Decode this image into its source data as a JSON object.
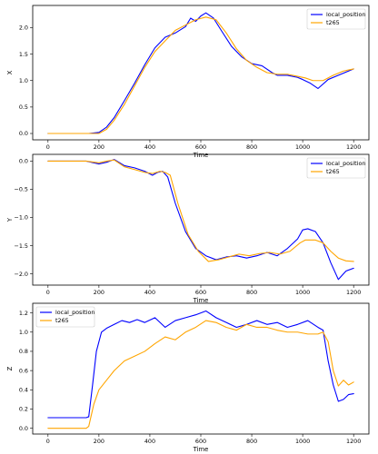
{
  "colors": {
    "local_position": "#0000ff",
    "t265": "#ffa500"
  },
  "chart_data": [
    {
      "type": "line",
      "xlabel": "Time",
      "ylabel": "X",
      "xlim": [
        -60,
        1260
      ],
      "ylim": [
        -0.12,
        2.42
      ],
      "xticks": [
        0,
        200,
        400,
        600,
        800,
        1000,
        1200
      ],
      "yticks": [
        0.0,
        0.5,
        1.0,
        1.5,
        2.0
      ],
      "ytick_labels": [
        "0.0",
        "0.5",
        "1.0",
        "1.5",
        "2.0"
      ],
      "legend": "top-right",
      "series": [
        {
          "name": "local_position",
          "color": "#0000ff",
          "x": [
            0,
            100,
            160,
            200,
            230,
            260,
            300,
            340,
            380,
            420,
            460,
            500,
            540,
            560,
            580,
            600,
            620,
            650,
            680,
            720,
            760,
            800,
            840,
            880,
            900,
            940,
            980,
            1000,
            1030,
            1060,
            1100,
            1140,
            1180,
            1200
          ],
          "y": [
            0.0,
            0.0,
            0.0,
            0.02,
            0.12,
            0.3,
            0.62,
            0.95,
            1.3,
            1.62,
            1.82,
            1.9,
            2.02,
            2.18,
            2.12,
            2.22,
            2.28,
            2.18,
            1.95,
            1.65,
            1.45,
            1.32,
            1.28,
            1.15,
            1.1,
            1.1,
            1.06,
            1.02,
            0.95,
            0.85,
            1.02,
            1.1,
            1.18,
            1.22
          ]
        },
        {
          "name": "t265",
          "color": "#ffa500",
          "x": [
            0,
            100,
            160,
            200,
            230,
            260,
            300,
            340,
            380,
            420,
            460,
            500,
            540,
            580,
            620,
            660,
            700,
            740,
            780,
            820,
            860,
            900,
            940,
            980,
            1010,
            1040,
            1080,
            1120,
            1160,
            1200
          ],
          "y": [
            0.0,
            0.0,
            0.0,
            0.0,
            0.08,
            0.25,
            0.55,
            0.9,
            1.25,
            1.55,
            1.75,
            1.95,
            2.05,
            2.15,
            2.2,
            2.15,
            1.9,
            1.6,
            1.38,
            1.25,
            1.15,
            1.12,
            1.12,
            1.08,
            1.05,
            1.0,
            1.0,
            1.1,
            1.18,
            1.22
          ]
        }
      ]
    },
    {
      "type": "line",
      "xlabel": "Time",
      "ylabel": "Y",
      "xlim": [
        -60,
        1260
      ],
      "ylim": [
        -2.2,
        0.12
      ],
      "xticks": [
        0,
        200,
        400,
        600,
        800,
        1000,
        1200
      ],
      "yticks": [
        0.0,
        -0.5,
        -1.0,
        -1.5,
        -2.0
      ],
      "ytick_labels": [
        "0.0",
        "−0.5",
        "−1.0",
        "−1.5",
        "−2.0"
      ],
      "legend": "top-right",
      "series": [
        {
          "name": "local_position",
          "color": "#0000ff",
          "x": [
            0,
            100,
            150,
            200,
            230,
            260,
            300,
            340,
            380,
            410,
            430,
            450,
            470,
            500,
            540,
            580,
            620,
            660,
            700,
            740,
            780,
            820,
            860,
            900,
            940,
            980,
            1000,
            1020,
            1050,
            1080,
            1110,
            1140,
            1170,
            1200
          ],
          "y": [
            0.0,
            0.0,
            0.0,
            -0.05,
            -0.02,
            0.03,
            -0.08,
            -0.12,
            -0.18,
            -0.25,
            -0.2,
            -0.18,
            -0.28,
            -0.75,
            -1.25,
            -1.55,
            -1.68,
            -1.75,
            -1.7,
            -1.68,
            -1.72,
            -1.68,
            -1.62,
            -1.68,
            -1.55,
            -1.38,
            -1.22,
            -1.2,
            -1.25,
            -1.45,
            -1.8,
            -2.1,
            -1.95,
            -1.9
          ]
        },
        {
          "name": "t265",
          "color": "#ffa500",
          "x": [
            0,
            100,
            150,
            200,
            230,
            260,
            300,
            340,
            380,
            410,
            440,
            460,
            480,
            510,
            550,
            590,
            630,
            670,
            710,
            750,
            790,
            830,
            870,
            910,
            950,
            990,
            1010,
            1050,
            1080,
            1110,
            1140,
            1170,
            1200
          ],
          "y": [
            0.0,
            0.0,
            0.0,
            -0.03,
            0.0,
            0.02,
            -0.1,
            -0.15,
            -0.2,
            -0.22,
            -0.18,
            -0.2,
            -0.25,
            -0.75,
            -1.3,
            -1.6,
            -1.78,
            -1.75,
            -1.7,
            -1.65,
            -1.68,
            -1.64,
            -1.62,
            -1.65,
            -1.6,
            -1.45,
            -1.4,
            -1.4,
            -1.45,
            -1.6,
            -1.72,
            -1.77,
            -1.78
          ]
        }
      ]
    },
    {
      "type": "line",
      "xlabel": "Time",
      "ylabel": "Z",
      "xlim": [
        -60,
        1260
      ],
      "ylim": [
        -0.06,
        1.3
      ],
      "xticks": [
        0,
        200,
        400,
        600,
        800,
        1000,
        1200
      ],
      "yticks": [
        0.0,
        0.2,
        0.4,
        0.6,
        0.8,
        1.0,
        1.2
      ],
      "ytick_labels": [
        "0.0",
        "0.2",
        "0.4",
        "0.6",
        "0.8",
        "1.0",
        "1.2"
      ],
      "legend": "top-left",
      "series": [
        {
          "name": "local_position",
          "color": "#0000ff",
          "x": [
            0,
            100,
            150,
            160,
            175,
            190,
            210,
            230,
            260,
            290,
            320,
            350,
            380,
            420,
            460,
            500,
            540,
            580,
            620,
            660,
            700,
            740,
            780,
            820,
            860,
            900,
            940,
            980,
            1020,
            1060,
            1080,
            1100,
            1120,
            1140,
            1160,
            1180,
            1200
          ],
          "y": [
            0.11,
            0.11,
            0.11,
            0.12,
            0.45,
            0.8,
            1.0,
            1.04,
            1.08,
            1.12,
            1.1,
            1.13,
            1.1,
            1.15,
            1.05,
            1.12,
            1.15,
            1.18,
            1.22,
            1.15,
            1.1,
            1.05,
            1.08,
            1.12,
            1.08,
            1.1,
            1.05,
            1.08,
            1.12,
            1.05,
            1.02,
            0.7,
            0.45,
            0.28,
            0.3,
            0.35,
            0.36
          ]
        },
        {
          "name": "t265",
          "color": "#ffa500",
          "x": [
            0,
            100,
            150,
            160,
            180,
            200,
            230,
            260,
            300,
            340,
            380,
            420,
            460,
            500,
            540,
            580,
            620,
            660,
            700,
            740,
            780,
            820,
            860,
            900,
            940,
            980,
            1020,
            1060,
            1080,
            1100,
            1120,
            1140,
            1160,
            1180,
            1200
          ],
          "y": [
            0.0,
            0.0,
            0.0,
            0.02,
            0.25,
            0.4,
            0.5,
            0.6,
            0.7,
            0.75,
            0.8,
            0.88,
            0.95,
            0.92,
            1.0,
            1.05,
            1.12,
            1.1,
            1.05,
            1.02,
            1.08,
            1.05,
            1.05,
            1.02,
            1.0,
            1.0,
            0.98,
            0.98,
            1.0,
            0.9,
            0.6,
            0.44,
            0.5,
            0.45,
            0.48
          ]
        }
      ]
    }
  ]
}
